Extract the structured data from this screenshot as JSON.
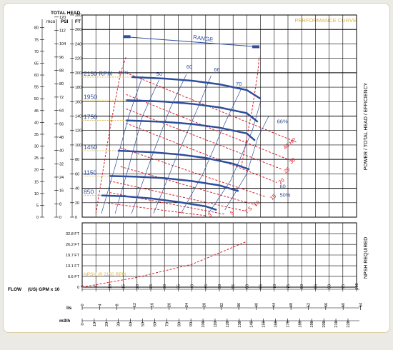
{
  "header": {
    "total_head": "TOTAL HEAD",
    "mco": "mco",
    "psi": "PSI",
    "ft": "FT",
    "performance_curve": "PERFORMANCE CURVE"
  },
  "side_labels": {
    "power": "POWER / TOTAL HEAD / EFFICIENCY",
    "npsh": "NPSH REQUIRED"
  },
  "axes": {
    "flow_label": "FLOW",
    "gpm_unit": "(US) GPM x 10",
    "ls_unit": "l/s",
    "m3h_unit": "m3/h",
    "gpm_ticks": [
      "0",
      "5",
      "10",
      "15",
      "20",
      "25",
      "30",
      "35",
      "40",
      "45",
      "50",
      "55",
      "60",
      "65",
      "70",
      "75",
      "80",
      "85",
      "90",
      "95",
      "100"
    ],
    "ls_ticks": [
      "0",
      "4",
      "8",
      "12",
      "16",
      "20",
      "24",
      "28",
      "32",
      "36",
      "40",
      "44",
      "48",
      "52",
      "56",
      "60",
      "64"
    ],
    "m3h_ticks": [
      "0",
      "10",
      "20",
      "30",
      "40",
      "50",
      "60",
      "70",
      "80",
      "90",
      "100",
      "110",
      "120",
      "130",
      "140",
      "150",
      "160",
      "170",
      "180",
      "190",
      "200",
      "210",
      "220"
    ],
    "ft_ticks": [
      "0",
      "20",
      "40",
      "60",
      "80",
      "100",
      "120",
      "140",
      "160",
      "180",
      "200",
      "220",
      "240",
      "260",
      "280"
    ],
    "psi_ticks": [
      "0",
      "8",
      "16",
      "24",
      "32",
      "40",
      "48",
      "56",
      "64",
      "72",
      "80",
      "88",
      "96",
      "104",
      "112",
      "120"
    ],
    "mco_ticks": [
      "0",
      "5",
      "10",
      "15",
      "20",
      "25",
      "30",
      "35",
      "40",
      "45",
      "50",
      "55",
      "60",
      "65",
      "70",
      "75",
      "80"
    ],
    "npsh_ticks": [
      "0",
      "6.6 FT",
      "13.1 FT",
      "19.7 FT",
      "26.2 FT",
      "32.8 FT"
    ]
  },
  "colors": {
    "blue": "#2f4f9c",
    "red": "#d8202a",
    "gold": "#d9b24a",
    "grid": "#000000",
    "border": "#d9cfa8"
  },
  "chart_data": {
    "type": "line",
    "x_unit": "(US) GPM x 10",
    "y_unit": "FT",
    "xlim": [
      0,
      100
    ],
    "ylim": [
      0,
      280
    ],
    "grid": true,
    "range_label": "RANGE",
    "series": [
      {
        "name": "2150 RPM",
        "x": [
          18,
          30,
          40,
          50,
          60,
          65
        ],
        "y": [
          194,
          192,
          189,
          184,
          176,
          164
        ]
      },
      {
        "name": "1950",
        "x": [
          16,
          30,
          40,
          50,
          60,
          64
        ],
        "y": [
          162,
          160,
          157,
          152,
          144,
          132
        ]
      },
      {
        "name": "1750",
        "x": [
          16,
          30,
          40,
          50,
          60,
          63
        ],
        "y": [
          134,
          132,
          129,
          124,
          116,
          106
        ]
      },
      {
        "name": "1450",
        "x": [
          13,
          25,
          35,
          45,
          55,
          61
        ],
        "y": [
          92,
          90,
          87,
          82,
          74,
          66
        ]
      },
      {
        "name": "1150",
        "x": [
          10,
          20,
          30,
          40,
          50,
          57
        ],
        "y": [
          57,
          56,
          54,
          50,
          44,
          36
        ]
      },
      {
        "name": "850",
        "x": [
          7,
          15,
          25,
          35,
          45,
          49
        ],
        "y": [
          30,
          29,
          26,
          21,
          15,
          10
        ]
      }
    ],
    "efficiency_labels": [
      "40%",
      "50",
      "60",
      "66",
      "70",
      "66%",
      "60",
      "50%"
    ],
    "power_labels": [
      "40 HP",
      "30",
      "25",
      "20",
      "15",
      "10",
      "7.5",
      "5",
      "3"
    ],
    "npsh_label": "NPSH @ 2150 RPM",
    "npsh_curve": {
      "x": [
        0,
        20,
        40,
        60
      ],
      "y_ft": [
        0,
        6,
        14,
        28
      ]
    }
  }
}
